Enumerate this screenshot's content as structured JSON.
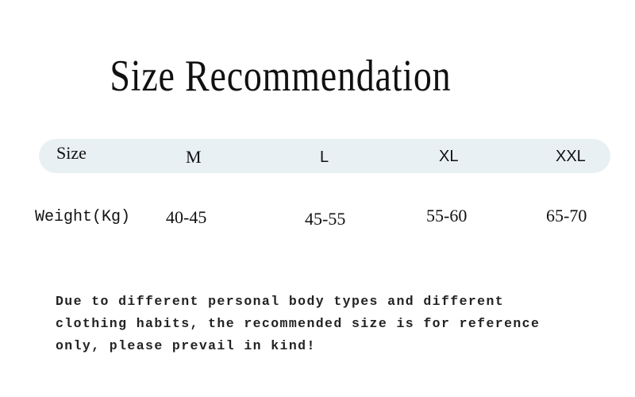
{
  "title": "Size Recommendation",
  "table": {
    "header_label": "Size",
    "sizes": [
      "M",
      "L",
      "XL",
      "XXL"
    ],
    "row_label": "Weight(Kg)",
    "weights": [
      "40-45",
      "45-55",
      "55-60",
      "65-70"
    ]
  },
  "note": [
    "Due to different personal body types and different",
    "clothing habits, the recommended size is for reference",
    "only, please prevail in kind!"
  ],
  "colors": {
    "header_band": "#e8f0f4",
    "text": "#111111"
  }
}
